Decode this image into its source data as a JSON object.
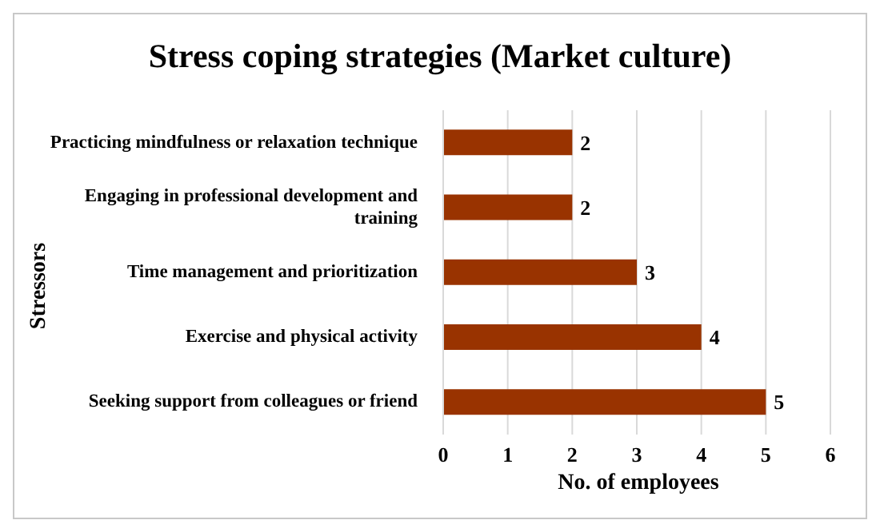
{
  "chart_data": {
    "type": "bar",
    "orientation": "horizontal",
    "title": "Stress coping strategies (Market culture)",
    "xlabel": "No. of employees",
    "ylabel": "Stressors",
    "categories": [
      "Practicing mindfulness or relaxation technique",
      "Engaging in professional development and training",
      "Time management and prioritization",
      "Exercise and physical activity",
      "Seeking support from colleagues or friend"
    ],
    "values": [
      2,
      2,
      3,
      4,
      5
    ],
    "color": "#993300",
    "xlim": [
      0,
      6
    ],
    "xticks": [
      0,
      1,
      2,
      3,
      4,
      5,
      6
    ],
    "grid": "x",
    "data_labels": true,
    "legend": false
  }
}
